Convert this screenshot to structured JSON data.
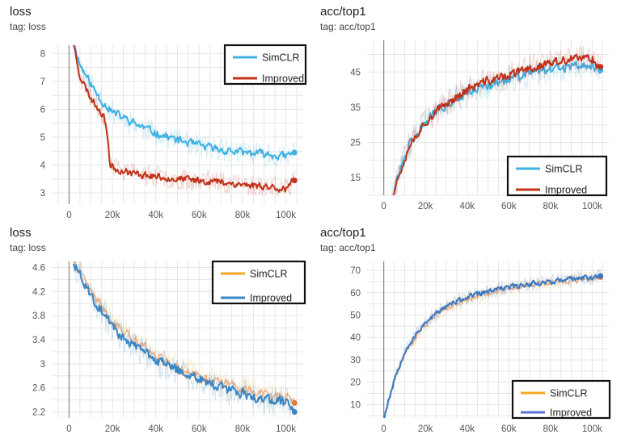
{
  "chart_data": [
    {
      "type": "line",
      "title": "loss",
      "subtitle": "tag: loss",
      "xlim": [
        -8000,
        108000
      ],
      "ylim": [
        2.6,
        8.3
      ],
      "xticks": [
        0,
        20000,
        40000,
        60000,
        80000,
        100000
      ],
      "xtick_labels": [
        "0",
        "20k",
        "40k",
        "60k",
        "80k",
        "100k"
      ],
      "yticks": [
        3,
        4,
        5,
        6,
        7,
        8
      ],
      "ytick_labels": [
        "3",
        "4",
        "5",
        "6",
        "7",
        "8"
      ],
      "grid": true,
      "legend_position": "top-right",
      "series": [
        {
          "name": "SimCLR",
          "color": "#3fb1e3",
          "x": [
            2000,
            5000,
            10000,
            15000,
            20000,
            30000,
            40000,
            50000,
            60000,
            70000,
            80000,
            90000,
            100000,
            104000
          ],
          "y": [
            8.4,
            7.6,
            6.9,
            6.3,
            5.9,
            5.5,
            5.15,
            4.9,
            4.7,
            4.55,
            4.45,
            4.4,
            4.3,
            4.45
          ],
          "noise": 0.2,
          "seed": 11
        },
        {
          "name": "Improved",
          "color": "#c0321a",
          "x": [
            2000,
            5000,
            10000,
            15000,
            17000,
            19000,
            22000,
            30000,
            40000,
            50000,
            60000,
            70000,
            80000,
            90000,
            100000,
            104000
          ],
          "y": [
            8.4,
            7.2,
            6.4,
            5.9,
            5.5,
            4.0,
            3.85,
            3.7,
            3.6,
            3.5,
            3.45,
            3.4,
            3.3,
            3.25,
            3.15,
            3.45
          ],
          "noise": 0.18,
          "seed": 23
        }
      ]
    },
    {
      "type": "line",
      "title": "acc/top1",
      "subtitle": "tag: acc/top1",
      "xlim": [
        -8000,
        108000
      ],
      "ylim": [
        10,
        54
      ],
      "xticks": [
        0,
        20000,
        40000,
        60000,
        80000,
        100000
      ],
      "xtick_labels": [
        "0",
        "20k",
        "40k",
        "60k",
        "80k",
        "100k"
      ],
      "yticks": [
        15,
        25,
        35,
        45
      ],
      "ytick_labels": [
        "15",
        "25",
        "35",
        "45"
      ],
      "grid": true,
      "legend_position": "bottom-right",
      "series": [
        {
          "name": "SimCLR",
          "color": "#3fb1e3",
          "x": [
            4000,
            8000,
            12000,
            20000,
            30000,
            40000,
            50000,
            60000,
            70000,
            80000,
            90000,
            100000,
            104000
          ],
          "y": [
            10,
            17,
            24,
            31,
            36,
            39,
            41,
            43,
            44.5,
            45.5,
            46.5,
            47,
            45.5
          ],
          "noise": 1.8,
          "seed": 31
        },
        {
          "name": "Improved",
          "color": "#c0321a",
          "x": [
            4000,
            8000,
            12000,
            20000,
            30000,
            40000,
            50000,
            60000,
            70000,
            80000,
            90000,
            100000,
            104000
          ],
          "y": [
            10,
            17,
            24,
            31,
            36,
            40,
            42.5,
            44,
            46,
            47.5,
            48.5,
            49,
            46.5
          ],
          "noise": 1.8,
          "seed": 37
        }
      ]
    },
    {
      "type": "line",
      "title": "loss",
      "subtitle": "tag: loss",
      "xlim": [
        -8000,
        108000
      ],
      "ylim": [
        2.1,
        4.7
      ],
      "xticks": [
        0,
        20000,
        40000,
        60000,
        80000,
        100000
      ],
      "xtick_labels": [
        "0",
        "20k",
        "40k",
        "60k",
        "80k",
        "100k"
      ],
      "yticks": [
        2.2,
        2.6,
        3,
        3.4,
        3.8,
        4.2,
        4.6
      ],
      "ytick_labels": [
        "2.2",
        "2.6",
        "3",
        "3.4",
        "3.8",
        "4.2",
        "4.6"
      ],
      "grid": true,
      "legend_position": "top-right",
      "series": [
        {
          "name": "SimCLR",
          "color": "#f5a623",
          "x": [
            2000,
            10000,
            20000,
            30000,
            40000,
            50000,
            60000,
            70000,
            80000,
            90000,
            100000,
            104000
          ],
          "y": [
            4.7,
            4.2,
            3.7,
            3.4,
            3.15,
            2.95,
            2.8,
            2.7,
            2.6,
            2.5,
            2.45,
            2.35
          ],
          "noise": 0.1,
          "seed": 41,
          "hidden": true
        },
        {
          "name": "Improved",
          "color": "#3a87c6",
          "x": [
            2000,
            10000,
            20000,
            30000,
            40000,
            50000,
            60000,
            70000,
            80000,
            90000,
            100000,
            104000
          ],
          "y": [
            4.7,
            4.15,
            3.6,
            3.3,
            3.05,
            2.9,
            2.75,
            2.6,
            2.5,
            2.4,
            2.35,
            2.2
          ],
          "noise": 0.12,
          "seed": 43
        }
      ]
    },
    {
      "type": "line",
      "title": "acc/top1",
      "subtitle": "tag: acc/top1",
      "xlim": [
        -8000,
        108000
      ],
      "ylim": [
        4,
        74
      ],
      "xticks": [
        0,
        20000,
        40000,
        60000,
        80000,
        100000
      ],
      "xtick_labels": [
        "0",
        "20k",
        "40k",
        "60k",
        "80k",
        "100k"
      ],
      "yticks": [
        10,
        20,
        30,
        40,
        50,
        60,
        70
      ],
      "ytick_labels": [
        "10",
        "20",
        "30",
        "40",
        "50",
        "60",
        "70"
      ],
      "grid": true,
      "legend_position": "bottom-right",
      "series": [
        {
          "name": "SimCLR",
          "color": "#f5a623",
          "x": [
            0,
            5000,
            10000,
            20000,
            30000,
            40000,
            50000,
            60000,
            70000,
            80000,
            90000,
            100000,
            104000
          ],
          "y": [
            4,
            20,
            33,
            46,
            53,
            57,
            60,
            62,
            63.5,
            64.5,
            65.5,
            66.5,
            67
          ],
          "noise": 1.6,
          "seed": 51,
          "hidden": true
        },
        {
          "name": "Improved",
          "color": "#4a67c9",
          "legend_color": "#5b6fd6",
          "line_color": "#3a78c2",
          "x": [
            0,
            5000,
            10000,
            20000,
            30000,
            40000,
            50000,
            60000,
            70000,
            80000,
            90000,
            100000,
            104000
          ],
          "y": [
            4,
            21,
            34,
            47,
            54,
            58,
            60.5,
            62.5,
            64,
            65,
            66,
            67,
            67.5
          ],
          "noise": 1.6,
          "seed": 53
        }
      ]
    }
  ],
  "panels": [
    {
      "title": "loss",
      "subtitle": "tag: loss"
    },
    {
      "title": "acc/top1",
      "subtitle": "tag: acc/top1"
    },
    {
      "title": "loss",
      "subtitle": "tag: loss"
    },
    {
      "title": "acc/top1",
      "subtitle": "tag: acc/top1"
    }
  ]
}
